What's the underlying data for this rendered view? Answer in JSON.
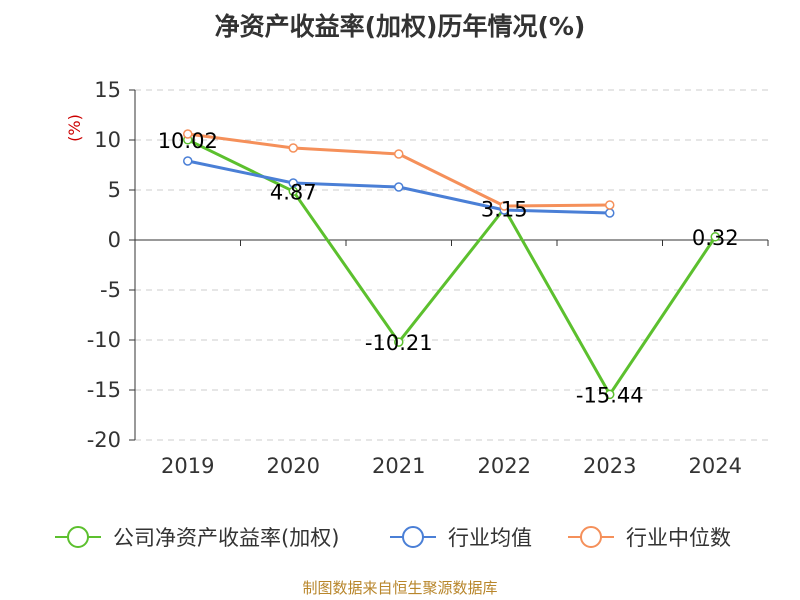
{
  "chart_data": {
    "type": "line",
    "title": "净资产收益率(加权)历年情况(%)",
    "ylabel": "(%)",
    "categories": [
      "2019",
      "2020",
      "2021",
      "2022",
      "2023",
      "2024"
    ],
    "ylim": [
      -20,
      15
    ],
    "yticks": [
      15,
      10,
      5,
      0,
      -5,
      -10,
      -15,
      -20
    ],
    "grid": true,
    "legend_position": "bottom",
    "series": [
      {
        "name": "公司净资产收益率(加权)",
        "color": "#5cc02e",
        "values": [
          10.02,
          4.87,
          -10.21,
          3.15,
          -15.44,
          0.32
        ],
        "labels": [
          "10.02",
          "4.87",
          "-10.21",
          "3.15",
          "-15.44",
          "0.32"
        ]
      },
      {
        "name": "行业均值",
        "color": "#4a7fd6",
        "values": [
          7.9,
          5.7,
          5.3,
          3.0,
          2.7,
          null
        ]
      },
      {
        "name": "行业中位数",
        "color": "#f5905a",
        "values": [
          10.6,
          9.2,
          8.6,
          3.4,
          3.5,
          null
        ]
      }
    ]
  },
  "source_text": "制图数据来自恒生聚源数据库"
}
